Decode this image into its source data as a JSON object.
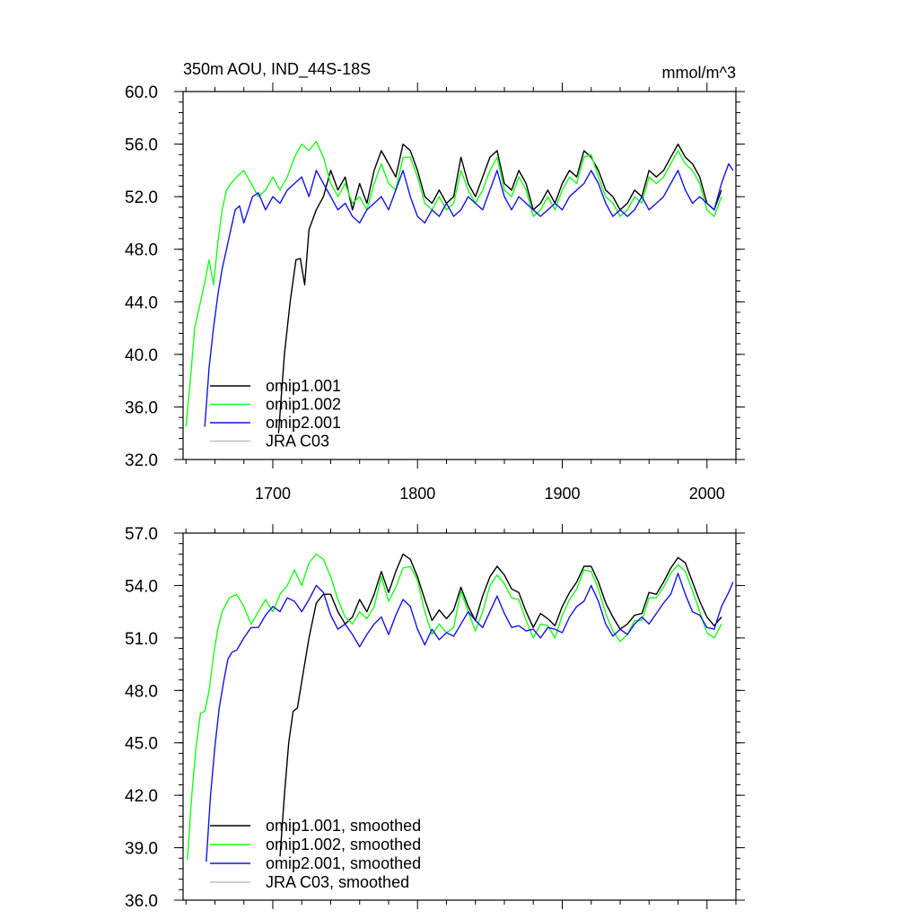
{
  "header": {
    "title": "350m AOU, IND_44S-18S",
    "units": "mmol/m^3"
  },
  "colors": {
    "omip1.001": "#000000",
    "omip1.002": "#19ff19",
    "omip2.001": "#1414e6",
    "JRA C03": "#c0c0c0"
  },
  "chart_data": [
    {
      "type": "line",
      "title": "350m AOU, IND_44S-18S",
      "units": "mmol/m^3",
      "xlim": [
        1638,
        2020
      ],
      "ylim": [
        32,
        60
      ],
      "xticks": [
        1700,
        1800,
        1900,
        2000
      ],
      "xtick_labels": [
        "1700",
        "1800",
        "1900",
        "2000"
      ],
      "yticks": [
        32,
        36,
        40,
        44,
        48,
        52,
        56,
        60
      ],
      "ytick_labels": [
        "32.0",
        "36.0",
        "40.0",
        "44.0",
        "48.0",
        "52.0",
        "56.0",
        "60.0"
      ],
      "legend": [
        "omip1.001",
        "omip1.002",
        "omip2.001",
        "JRA C03"
      ],
      "legend_position": "bottom-left",
      "series": [
        {
          "name": "omip1.001",
          "x": [
            1704,
            1708,
            1712,
            1716,
            1719,
            1722,
            1725,
            1730,
            1735,
            1740,
            1745,
            1750,
            1755,
            1760,
            1765,
            1770,
            1775,
            1780,
            1785,
            1790,
            1795,
            1800,
            1805,
            1810,
            1815,
            1820,
            1825,
            1830,
            1835,
            1840,
            1845,
            1850,
            1855,
            1860,
            1865,
            1870,
            1875,
            1880,
            1885,
            1890,
            1895,
            1900,
            1905,
            1910,
            1915,
            1920,
            1925,
            1930,
            1935,
            1940,
            1945,
            1950,
            1955,
            1960,
            1965,
            1970,
            1975,
            1980,
            1985,
            1990,
            1995,
            2000,
            2005,
            2010
          ],
          "y": [
            34,
            40,
            44,
            47.2,
            47.3,
            45.3,
            49.5,
            51,
            52,
            54,
            52.5,
            53.5,
            51,
            53,
            51.5,
            54,
            55.5,
            54.5,
            53.5,
            56,
            55.5,
            54,
            52,
            51.5,
            52.5,
            51.5,
            52,
            55,
            53,
            52,
            53.5,
            55,
            55.5,
            53,
            52.5,
            54,
            53,
            51,
            51.5,
            52.5,
            51.5,
            53,
            54,
            53.5,
            55.5,
            55,
            54,
            52.5,
            52,
            51,
            51.5,
            52.5,
            52,
            54,
            53.5,
            54,
            55,
            56,
            55,
            54.5,
            53.5,
            51.5,
            51,
            52.5
          ]
        },
        {
          "name": "omip1.002",
          "x": [
            1640,
            1643,
            1646,
            1650,
            1653,
            1656,
            1659,
            1662,
            1665,
            1668,
            1671,
            1675,
            1680,
            1685,
            1690,
            1695,
            1700,
            1705,
            1710,
            1715,
            1720,
            1725,
            1730,
            1735,
            1740,
            1745,
            1750,
            1755,
            1760,
            1765,
            1770,
            1775,
            1780,
            1785,
            1790,
            1795,
            1800,
            1805,
            1810,
            1815,
            1820,
            1825,
            1830,
            1835,
            1840,
            1845,
            1850,
            1855,
            1860,
            1865,
            1870,
            1875,
            1880,
            1885,
            1890,
            1895,
            1900,
            1905,
            1910,
            1915,
            1920,
            1925,
            1930,
            1935,
            1940,
            1945,
            1950,
            1955,
            1960,
            1965,
            1970,
            1975,
            1980,
            1985,
            1990,
            1995,
            2000,
            2005,
            2010
          ],
          "y": [
            34.5,
            38,
            42,
            44,
            45.5,
            47.2,
            45.3,
            48.5,
            51,
            52.5,
            53,
            53.5,
            54,
            53,
            52,
            52.5,
            53.5,
            52.5,
            53.5,
            55,
            56,
            55.5,
            56.2,
            55,
            53,
            52,
            53,
            51.5,
            52,
            51,
            53,
            54.5,
            53,
            52.5,
            55,
            55,
            53.5,
            51.5,
            51,
            52,
            51,
            51.5,
            54,
            52.5,
            51.5,
            52.5,
            54,
            55,
            52.5,
            52,
            53.5,
            52.5,
            50.5,
            51,
            52,
            51,
            52.5,
            53.5,
            53,
            55,
            55.2,
            53.5,
            52,
            51.5,
            50.5,
            51,
            52,
            51.5,
            53.5,
            53,
            53.5,
            54.5,
            55.5,
            54.5,
            54,
            53,
            51,
            50.5,
            52
          ]
        },
        {
          "name": "omip2.001",
          "x": [
            1653,
            1656,
            1659,
            1662,
            1665,
            1668,
            1671,
            1674,
            1677,
            1680,
            1683,
            1686,
            1690,
            1695,
            1700,
            1705,
            1710,
            1715,
            1720,
            1725,
            1730,
            1735,
            1740,
            1745,
            1750,
            1755,
            1760,
            1765,
            1770,
            1775,
            1780,
            1785,
            1790,
            1795,
            1800,
            1805,
            1810,
            1815,
            1820,
            1825,
            1830,
            1835,
            1840,
            1845,
            1850,
            1855,
            1860,
            1865,
            1870,
            1875,
            1880,
            1885,
            1890,
            1895,
            1900,
            1905,
            1910,
            1915,
            1920,
            1925,
            1930,
            1935,
            1940,
            1945,
            1950,
            1955,
            1960,
            1965,
            1970,
            1975,
            1980,
            1985,
            1990,
            1995,
            2000,
            2005,
            2010,
            2015,
            2018
          ],
          "y": [
            34.5,
            39,
            42,
            44.5,
            46.5,
            48,
            49.5,
            51,
            51.3,
            50,
            51,
            52,
            52.3,
            51,
            52,
            51.5,
            52.5,
            53,
            53.5,
            52,
            54,
            53,
            52,
            51,
            51.5,
            50.5,
            50,
            51,
            51.5,
            52,
            51,
            52.5,
            54,
            52,
            50.5,
            50,
            51,
            50.5,
            51.5,
            50.5,
            51,
            52,
            51.5,
            51,
            52.5,
            54,
            52,
            51,
            52,
            51.5,
            51,
            50.5,
            51,
            51.5,
            51,
            52,
            52.5,
            53,
            54,
            53,
            51.5,
            50.5,
            51,
            50.5,
            51,
            52,
            51,
            51.5,
            52,
            53,
            54,
            52.5,
            51.5,
            52,
            51.5,
            51,
            53,
            54.5,
            54
          ]
        },
        {
          "name": "JRA C03",
          "x": [],
          "y": []
        }
      ]
    },
    {
      "type": "line",
      "title": "",
      "xlim": [
        1638,
        2020
      ],
      "ylim": [
        36,
        57
      ],
      "xticks": [
        1700,
        1800,
        1900,
        2000
      ],
      "xtick_labels": [],
      "yticks": [
        36,
        39,
        42,
        45,
        48,
        51,
        54,
        57
      ],
      "ytick_labels": [
        "36.0",
        "39.0",
        "42.0",
        "45.0",
        "48.0",
        "51.0",
        "54.0",
        "57.0"
      ],
      "legend": [
        "omip1.001, smoothed",
        "omip1.002, smoothed",
        "omip2.001, smoothed",
        "JRA C03, smoothed"
      ],
      "legend_position": "bottom-left",
      "series": [
        {
          "name": "omip1.001, smoothed",
          "x": [
            1705,
            1708,
            1711,
            1714,
            1717,
            1720,
            1725,
            1730,
            1735,
            1740,
            1745,
            1750,
            1755,
            1760,
            1765,
            1770,
            1775,
            1780,
            1785,
            1790,
            1795,
            1800,
            1805,
            1810,
            1815,
            1820,
            1825,
            1830,
            1835,
            1840,
            1845,
            1850,
            1855,
            1860,
            1865,
            1870,
            1875,
            1880,
            1885,
            1890,
            1895,
            1900,
            1905,
            1910,
            1915,
            1920,
            1925,
            1930,
            1935,
            1940,
            1945,
            1950,
            1955,
            1960,
            1965,
            1970,
            1975,
            1980,
            1985,
            1990,
            1995,
            2000,
            2005,
            2010
          ],
          "y": [
            38.5,
            42,
            45,
            46.8,
            47,
            48.5,
            51,
            53,
            53.5,
            53.5,
            52.5,
            51.8,
            52.2,
            53.2,
            52.5,
            53.5,
            54.8,
            53.6,
            54.8,
            55.8,
            55.5,
            54.5,
            53.2,
            52,
            52.6,
            52.1,
            52.6,
            53.9,
            52.8,
            52,
            53.4,
            54.5,
            55.1,
            54.6,
            53.8,
            53.6,
            52.5,
            51.6,
            52.4,
            52.1,
            51.7,
            52.8,
            53.6,
            54.2,
            55.1,
            55.1,
            54.2,
            53,
            52.2,
            51.5,
            51.8,
            52.3,
            52.4,
            53.6,
            53.5,
            54.2,
            55,
            55.6,
            55.3,
            54.2,
            53.1,
            52.2,
            51.7,
            52.2
          ]
        },
        {
          "name": "omip1.002, smoothed",
          "x": [
            1641,
            1644,
            1647,
            1650,
            1653,
            1656,
            1659,
            1662,
            1665,
            1670,
            1675,
            1680,
            1685,
            1690,
            1695,
            1700,
            1705,
            1710,
            1715,
            1720,
            1725,
            1730,
            1735,
            1740,
            1745,
            1750,
            1755,
            1760,
            1765,
            1770,
            1775,
            1780,
            1785,
            1790,
            1795,
            1800,
            1805,
            1810,
            1815,
            1820,
            1825,
            1830,
            1835,
            1840,
            1845,
            1850,
            1855,
            1860,
            1865,
            1870,
            1875,
            1880,
            1885,
            1890,
            1895,
            1900,
            1905,
            1910,
            1915,
            1920,
            1925,
            1930,
            1935,
            1940,
            1945,
            1950,
            1955,
            1960,
            1965,
            1970,
            1975,
            1980,
            1985,
            1990,
            1995,
            2000,
            2005,
            2010
          ],
          "y": [
            38.3,
            42,
            44.8,
            46.7,
            46.8,
            48,
            50,
            51.5,
            52.5,
            53.3,
            53.5,
            52.8,
            51.8,
            52.5,
            53.2,
            52.5,
            53.5,
            54,
            54.9,
            54,
            55.3,
            55.8,
            55.5,
            54.5,
            53.2,
            52.2,
            51.8,
            52.5,
            52.1,
            52.8,
            54.5,
            53.1,
            53.9,
            55,
            55.1,
            54.3,
            52.5,
            51.2,
            51.8,
            51.3,
            51.6,
            53.7,
            52.5,
            51.4,
            52.5,
            54,
            54.6,
            54.1,
            53.3,
            53.2,
            52,
            51,
            51.8,
            51.7,
            51,
            52.3,
            53.2,
            53.8,
            54.9,
            54.8,
            53.8,
            52.4,
            51.4,
            50.8,
            51.2,
            52,
            52,
            53.3,
            53.3,
            53.9,
            54.7,
            55.2,
            54.8,
            53.7,
            52.5,
            51.3,
            51,
            51.8
          ]
        },
        {
          "name": "omip2.001, smoothed",
          "x": [
            1654,
            1657,
            1660,
            1663,
            1666,
            1669,
            1672,
            1675,
            1680,
            1685,
            1690,
            1695,
            1700,
            1705,
            1710,
            1715,
            1720,
            1725,
            1730,
            1735,
            1740,
            1745,
            1750,
            1755,
            1760,
            1765,
            1770,
            1775,
            1780,
            1785,
            1790,
            1795,
            1800,
            1805,
            1810,
            1815,
            1820,
            1825,
            1830,
            1835,
            1840,
            1845,
            1850,
            1855,
            1860,
            1865,
            1870,
            1875,
            1880,
            1885,
            1890,
            1895,
            1900,
            1905,
            1910,
            1915,
            1920,
            1925,
            1930,
            1935,
            1940,
            1945,
            1950,
            1955,
            1960,
            1965,
            1970,
            1975,
            1980,
            1985,
            1990,
            1995,
            2000,
            2005,
            2010,
            2015,
            2018
          ],
          "y": [
            38.2,
            42,
            44.8,
            47,
            48.5,
            49.8,
            50.2,
            50.3,
            51,
            51.6,
            51.6,
            52.3,
            52.8,
            52.5,
            53.3,
            53.1,
            52.5,
            53.2,
            54,
            53.6,
            52.3,
            51.5,
            51.8,
            51.2,
            50.5,
            51.2,
            51.8,
            52.2,
            51.2,
            52.3,
            53.2,
            52.8,
            51.5,
            50.6,
            51.5,
            50.9,
            51.3,
            51.1,
            51.8,
            52.5,
            52,
            51.6,
            52.5,
            53.4,
            52.4,
            51.6,
            51.7,
            51.4,
            51.5,
            51,
            51.6,
            51.5,
            51.3,
            52.2,
            52.8,
            53.1,
            54,
            53.1,
            51.8,
            51.1,
            51.5,
            51.2,
            51.8,
            52.2,
            51.8,
            52.4,
            53,
            53.5,
            54.7,
            53.5,
            52.5,
            52.3,
            51.6,
            51.5,
            52.8,
            53.6,
            54.2
          ]
        },
        {
          "name": "JRA C03, smoothed",
          "x": [],
          "y": []
        }
      ]
    }
  ]
}
